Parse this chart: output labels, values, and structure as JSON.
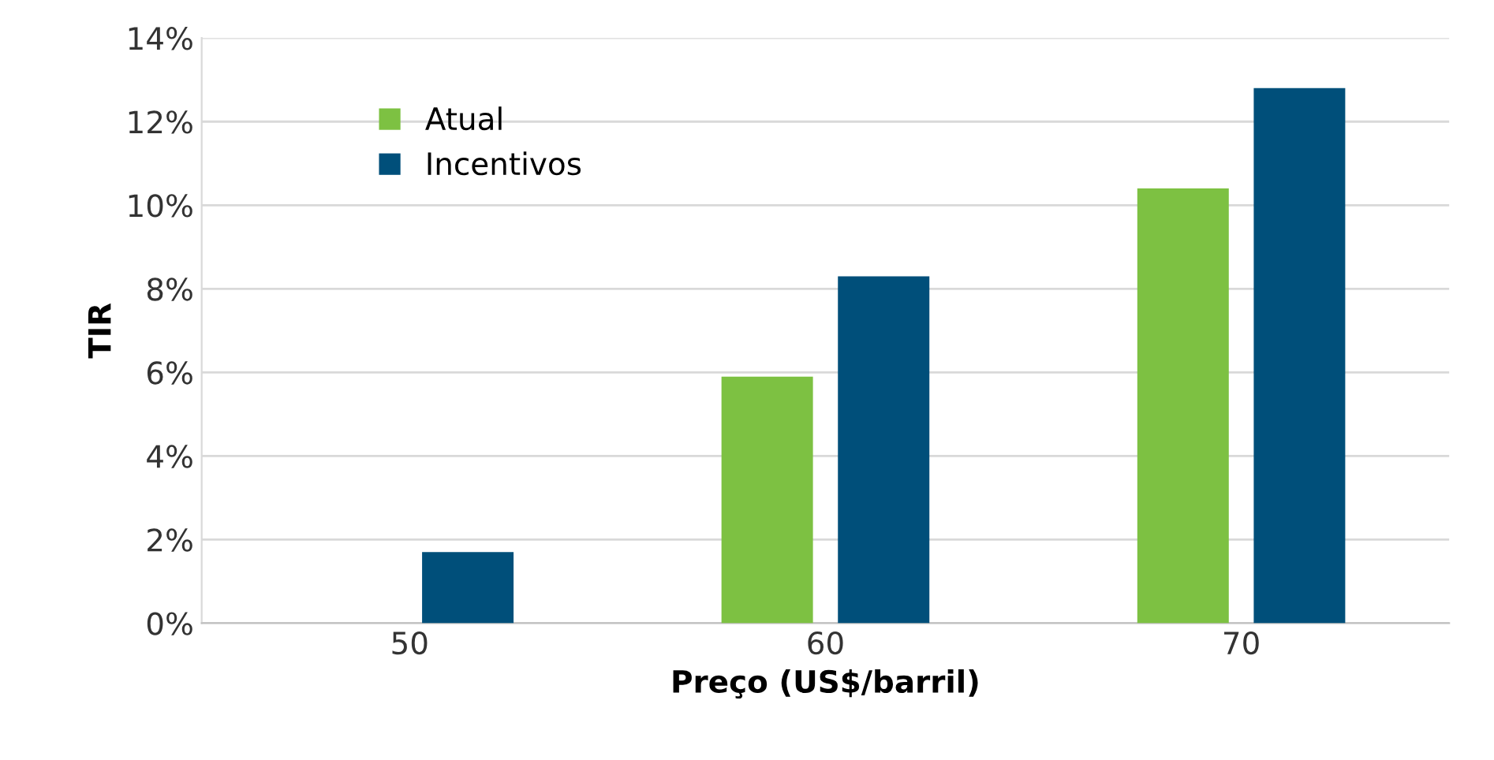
{
  "chart_data": {
    "type": "bar",
    "xlabel": "Preço (US$/barril)",
    "ylabel": "TIR",
    "categories": [
      "50",
      "60",
      "70"
    ],
    "series": [
      {
        "name": "Atual",
        "color": "#7dc142",
        "values": [
          null,
          5.9,
          10.4
        ]
      },
      {
        "name": "Incentivos",
        "color": "#004f7a",
        "values": [
          1.7,
          8.3,
          12.8
        ]
      }
    ],
    "ylim": [
      0,
      14
    ],
    "yticks": [
      {
        "value": 0,
        "label": "0%"
      },
      {
        "value": 2,
        "label": "2%"
      },
      {
        "value": 4,
        "label": "4%"
      },
      {
        "value": 6,
        "label": "6%"
      },
      {
        "value": 8,
        "label": "8%"
      },
      {
        "value": 10,
        "label": "10%"
      },
      {
        "value": 12,
        "label": "12%"
      },
      {
        "value": 14,
        "label": "14%"
      }
    ],
    "grid": "y",
    "legend": "top left"
  }
}
